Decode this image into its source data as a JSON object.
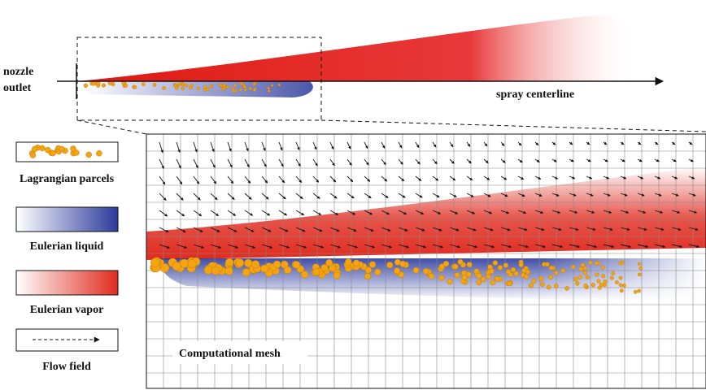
{
  "top": {
    "nozzle_label": [
      "nozzle",
      "outlet"
    ],
    "centerline_label": "spray centerline"
  },
  "legend": [
    {
      "label": "Lagrangian parcels"
    },
    {
      "label": "Eulerian liquid"
    },
    {
      "label": "Eulerian vapor"
    },
    {
      "label": "Flow field"
    }
  ],
  "zoom": {
    "mesh_label": "Computational mesh"
  }
}
